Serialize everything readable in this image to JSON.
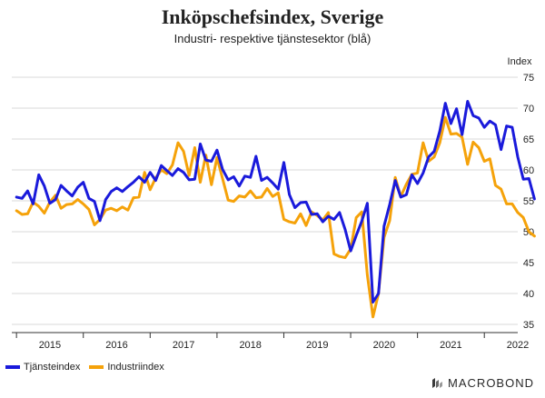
{
  "chart_data": {
    "type": "line",
    "title": "Inköpschefsindex, Sverige",
    "subtitle": "Industri- respektive tjänstesektor (blå)",
    "ylabel": "Index",
    "ylim": [
      35,
      75
    ],
    "yticks": [
      35,
      40,
      45,
      50,
      55,
      60,
      65,
      70,
      75
    ],
    "grid": true,
    "xlim": [
      2014.93,
      2022.5
    ],
    "xticks": [
      "2015",
      "2016",
      "2017",
      "2018",
      "2019",
      "2020",
      "2021",
      "2022"
    ],
    "series": [
      {
        "name": "Tjänsteindex",
        "color": "#1a1adb",
        "x_start": 2015.0,
        "step_per_year": 12,
        "values": [
          55.6,
          55.4,
          56.6,
          54.5,
          59.2,
          57.4,
          54.6,
          55.2,
          57.5,
          56.6,
          55.8,
          57.2,
          58.0,
          55.4,
          54.9,
          51.8,
          55.2,
          56.5,
          57.1,
          56.5,
          57.3,
          58.0,
          58.9,
          58.0,
          59.6,
          58.3,
          60.7,
          59.9,
          59.1,
          60.2,
          59.6,
          58.4,
          58.5,
          64.2,
          61.6,
          61.4,
          63.2,
          60.1,
          58.4,
          58.9,
          57.4,
          59.0,
          58.8,
          62.2,
          58.3,
          58.8,
          57.9,
          56.9,
          61.2,
          56.0,
          53.9,
          54.7,
          54.8,
          52.8,
          52.9,
          51.6,
          52.5,
          52.0,
          53.1,
          50.4,
          46.9,
          49.4,
          51.7,
          54.6,
          38.6,
          40.0,
          50.9,
          54.4,
          58.3,
          55.6,
          56.0,
          59.2,
          57.8,
          59.5,
          62.1,
          63.0,
          66.3,
          70.8,
          67.5,
          69.9,
          65.7,
          71.1,
          68.8,
          68.4,
          66.9,
          67.9,
          67.3,
          63.3,
          67.1,
          66.9,
          62.1,
          58.5,
          58.6,
          55.3
        ]
      },
      {
        "name": "Industriindex",
        "color": "#f5a20a",
        "x_start": 2015.0,
        "step_per_year": 12,
        "values": [
          53.4,
          52.8,
          52.9,
          54.8,
          54.1,
          53.0,
          54.8,
          55.9,
          53.8,
          54.4,
          54.5,
          55.2,
          54.5,
          53.6,
          51.1,
          52.0,
          53.5,
          53.8,
          53.4,
          54.0,
          53.5,
          55.5,
          55.6,
          59.6,
          56.8,
          58.7,
          60.0,
          59.4,
          60.8,
          64.4,
          63.0,
          59.1,
          63.6,
          58.0,
          62.4,
          57.6,
          62.0,
          58.6,
          55.1,
          54.9,
          55.8,
          55.6,
          56.6,
          55.5,
          55.6,
          57.0,
          55.7,
          56.3,
          52.0,
          51.6,
          51.4,
          52.9,
          51.0,
          53.2,
          52.6,
          51.9,
          53.1,
          46.4,
          46.0,
          45.8,
          47.2,
          52.3,
          53.2,
          43.0,
          36.2,
          40.0,
          49.1,
          51.8,
          58.8,
          55.7,
          57.7,
          59.3,
          59.5,
          64.4,
          61.4,
          62.1,
          64.4,
          68.5,
          65.8,
          65.9,
          65.3,
          60.9,
          64.5,
          63.6,
          61.4,
          61.8,
          57.5,
          56.9,
          54.5,
          54.5,
          53.1,
          52.3,
          50.0,
          49.3
        ]
      }
    ]
  },
  "brand": "MACROBOND"
}
